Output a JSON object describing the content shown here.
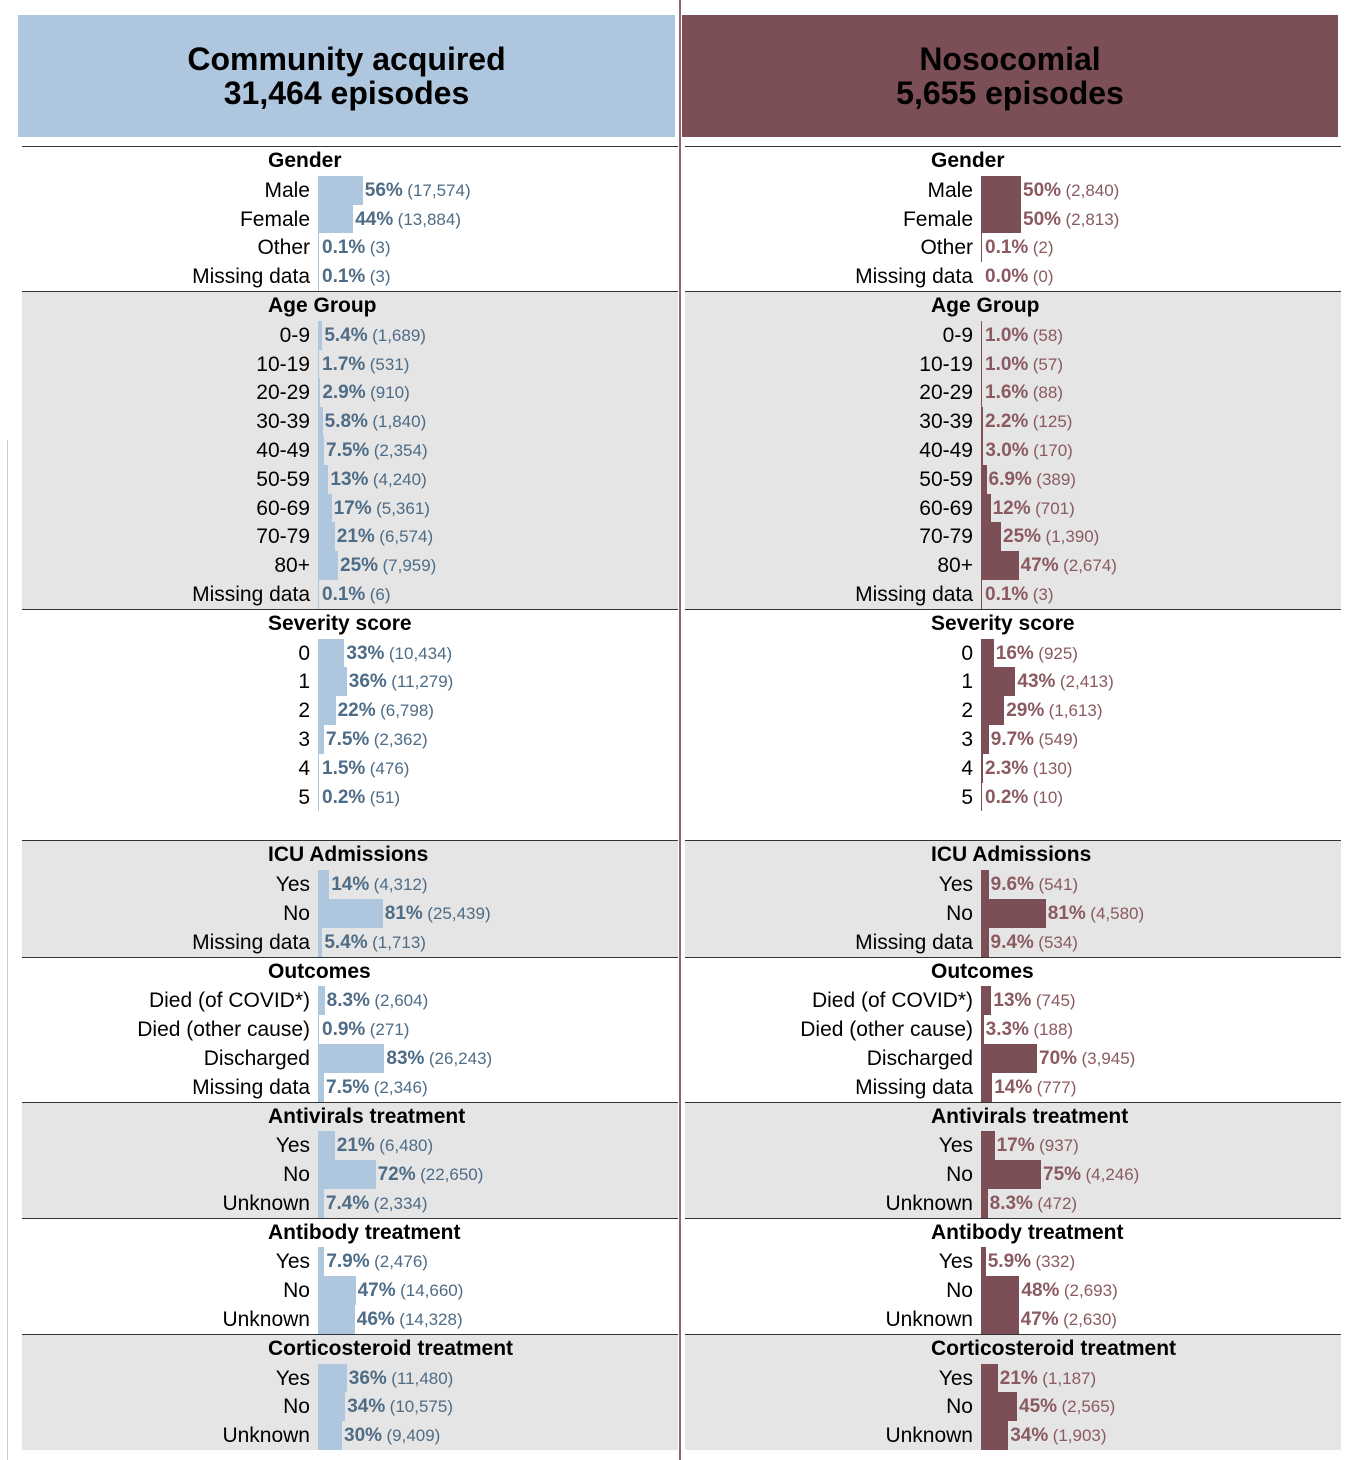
{
  "panels": [
    {
      "color": "#afc6df",
      "header": {
        "title": "Community acquired",
        "subtitle": "31,464 episodes"
      },
      "sections": [
        {
          "title": "Gender",
          "rows": [
            {
              "label": "Male",
              "value": 56,
              "value_label": "56%",
              "count": "(17,574)"
            },
            {
              "label": "Female",
              "value": 44,
              "value_label": "44%",
              "count": "(13,884)"
            },
            {
              "label": "Other",
              "value": 0.1,
              "value_label": "0.1%",
              "count": "(3)"
            },
            {
              "label": "Missing data",
              "value": 0.1,
              "value_label": "0.1%",
              "count": "(3)"
            }
          ]
        },
        {
          "title": "Age Group",
          "rows": [
            {
              "label": "0-9",
              "value": 5.4,
              "value_label": "5.4%",
              "count": "(1,689)"
            },
            {
              "label": "10-19",
              "value": 1.7,
              "value_label": "1.7%",
              "count": "(531)"
            },
            {
              "label": "20-29",
              "value": 2.9,
              "value_label": "2.9%",
              "count": "(910)"
            },
            {
              "label": "30-39",
              "value": 5.8,
              "value_label": "5.8%",
              "count": "(1,840)"
            },
            {
              "label": "40-49",
              "value": 7.5,
              "value_label": "7.5%",
              "count": "(2,354)"
            },
            {
              "label": "50-59",
              "value": 13,
              "value_label": "13%",
              "count": "(4,240)"
            },
            {
              "label": "60-69",
              "value": 17,
              "value_label": "17%",
              "count": "(5,361)"
            },
            {
              "label": "70-79",
              "value": 21,
              "value_label": "21%",
              "count": "(6,574)"
            },
            {
              "label": "80+",
              "value": 25,
              "value_label": "25%",
              "count": "(7,959)"
            },
            {
              "label": "Missing data",
              "value": 0.1,
              "value_label": "0.1%",
              "count": "(6)"
            }
          ]
        },
        {
          "title": "Severity score",
          "rows": [
            {
              "label": "0",
              "value": 33,
              "value_label": "33%",
              "count": "(10,434)"
            },
            {
              "label": "1",
              "value": 36,
              "value_label": "36%",
              "count": "(11,279)"
            },
            {
              "label": "2",
              "value": 22,
              "value_label": "22%",
              "count": "(6,798)"
            },
            {
              "label": "3",
              "value": 7.5,
              "value_label": "7.5%",
              "count": "(2,362)"
            },
            {
              "label": "4",
              "value": 1.5,
              "value_label": "1.5%",
              "count": "(476)"
            },
            {
              "label": "5",
              "value": 0.2,
              "value_label": "0.2%",
              "count": "(51)"
            }
          ]
        },
        {
          "title": "ICU Admissions",
          "rows": [
            {
              "label": "Yes",
              "value": 14,
              "value_label": "14%",
              "count": "(4,312)"
            },
            {
              "label": "No",
              "value": 81,
              "value_label": "81%",
              "count": "(25,439)"
            },
            {
              "label": "Missing data",
              "value": 5.4,
              "value_label": "5.4%",
              "count": "(1,713)"
            }
          ]
        },
        {
          "title": "Outcomes",
          "rows": [
            {
              "label": "Died (of COVID*)",
              "value": 8.3,
              "value_label": "8.3%",
              "count": "(2,604)"
            },
            {
              "label": "Died (other cause)",
              "value": 0.9,
              "value_label": "0.9%",
              "count": "(271)"
            },
            {
              "label": "Discharged",
              "value": 83,
              "value_label": "83%",
              "count": "(26,243)"
            },
            {
              "label": "Missing data",
              "value": 7.5,
              "value_label": "7.5%",
              "count": "(2,346)"
            }
          ]
        },
        {
          "title": "Antivirals treatment",
          "rows": [
            {
              "label": "Yes",
              "value": 21,
              "value_label": "21%",
              "count": "(6,480)"
            },
            {
              "label": "No",
              "value": 72,
              "value_label": "72%",
              "count": "(22,650)"
            },
            {
              "label": "Unknown",
              "value": 7.4,
              "value_label": "7.4%",
              "count": "(2,334)"
            }
          ]
        },
        {
          "title": "Antibody treatment",
          "rows": [
            {
              "label": "Yes",
              "value": 7.9,
              "value_label": "7.9%",
              "count": "(2,476)"
            },
            {
              "label": "No",
              "value": 47,
              "value_label": "47%",
              "count": "(14,660)"
            },
            {
              "label": "Unknown",
              "value": 46,
              "value_label": "46%",
              "count": "(14,328)"
            }
          ]
        },
        {
          "title": "Corticosteroid treatment",
          "rows": [
            {
              "label": "Yes",
              "value": 36,
              "value_label": "36%",
              "count": "(11,480)"
            },
            {
              "label": "No",
              "value": 34,
              "value_label": "34%",
              "count": "(10,575)"
            },
            {
              "label": "Unknown",
              "value": 30,
              "value_label": "30%",
              "count": "(9,409)"
            }
          ]
        }
      ]
    },
    {
      "color": "#7b4f55",
      "header": {
        "title": "Nosocomial",
        "subtitle": "5,655 episodes"
      },
      "sections": [
        {
          "title": "Gender",
          "rows": [
            {
              "label": "Male",
              "value": 50,
              "value_label": "50%",
              "count": "(2,840)"
            },
            {
              "label": "Female",
              "value": 50,
              "value_label": "50%",
              "count": "(2,813)"
            },
            {
              "label": "Other",
              "value": 0.1,
              "value_label": "0.1%",
              "count": "(2)"
            },
            {
              "label": "Missing data",
              "value": 0,
              "value_label": "0.0%",
              "count": "(0)"
            }
          ]
        },
        {
          "title": "Age Group",
          "rows": [
            {
              "label": "0-9",
              "value": 1,
              "value_label": "1.0%",
              "count": "(58)"
            },
            {
              "label": "10-19",
              "value": 1,
              "value_label": "1.0%",
              "count": "(57)"
            },
            {
              "label": "20-29",
              "value": 1.6,
              "value_label": "1.6%",
              "count": "(88)"
            },
            {
              "label": "30-39",
              "value": 2.2,
              "value_label": "2.2%",
              "count": "(125)"
            },
            {
              "label": "40-49",
              "value": 3,
              "value_label": "3.0%",
              "count": "(170)"
            },
            {
              "label": "50-59",
              "value": 6.9,
              "value_label": "6.9%",
              "count": "(389)"
            },
            {
              "label": "60-69",
              "value": 12,
              "value_label": "12%",
              "count": "(701)"
            },
            {
              "label": "70-79",
              "value": 25,
              "value_label": "25%",
              "count": "(1,390)"
            },
            {
              "label": "80+",
              "value": 47,
              "value_label": "47%",
              "count": "(2,674)"
            },
            {
              "label": "Missing data",
              "value": 0.1,
              "value_label": "0.1%",
              "count": "(3)"
            }
          ]
        },
        {
          "title": "Severity score",
          "rows": [
            {
              "label": "0",
              "value": 16,
              "value_label": "16%",
              "count": "(925)"
            },
            {
              "label": "1",
              "value": 43,
              "value_label": "43%",
              "count": "(2,413)"
            },
            {
              "label": "2",
              "value": 29,
              "value_label": "29%",
              "count": "(1,613)"
            },
            {
              "label": "3",
              "value": 9.7,
              "value_label": "9.7%",
              "count": "(549)"
            },
            {
              "label": "4",
              "value": 2.3,
              "value_label": "2.3%",
              "count": "(130)"
            },
            {
              "label": "5",
              "value": 0.2,
              "value_label": "0.2%",
              "count": "(10)"
            }
          ]
        },
        {
          "title": "ICU Admissions",
          "rows": [
            {
              "label": "Yes",
              "value": 9.6,
              "value_label": "9.6%",
              "count": "(541)"
            },
            {
              "label": "No",
              "value": 81,
              "value_label": "81%",
              "count": "(4,580)"
            },
            {
              "label": "Missing data",
              "value": 9.4,
              "value_label": "9.4%",
              "count": "(534)"
            }
          ]
        },
        {
          "title": "Outcomes",
          "rows": [
            {
              "label": "Died (of COVID*)",
              "value": 13,
              "value_label": "13%",
              "count": "(745)"
            },
            {
              "label": "Died (other cause)",
              "value": 3.3,
              "value_label": "3.3%",
              "count": "(188)"
            },
            {
              "label": "Discharged",
              "value": 70,
              "value_label": "70%",
              "count": "(3,945)"
            },
            {
              "label": "Missing data",
              "value": 14,
              "value_label": "14%",
              "count": "(777)"
            }
          ]
        },
        {
          "title": "Antivirals treatment",
          "rows": [
            {
              "label": "Yes",
              "value": 17,
              "value_label": "17%",
              "count": "(937)"
            },
            {
              "label": "No",
              "value": 75,
              "value_label": "75%",
              "count": "(4,246)"
            },
            {
              "label": "Unknown",
              "value": 8.3,
              "value_label": "8.3%",
              "count": "(472)"
            }
          ]
        },
        {
          "title": "Antibody treatment",
          "rows": [
            {
              "label": "Yes",
              "value": 5.9,
              "value_label": "5.9%",
              "count": "(332)"
            },
            {
              "label": "No",
              "value": 48,
              "value_label": "48%",
              "count": "(2,693)"
            },
            {
              "label": "Unknown",
              "value": 47,
              "value_label": "47%",
              "count": "(2,630)"
            }
          ]
        },
        {
          "title": "Corticosteroid treatment",
          "rows": [
            {
              "label": "Yes",
              "value": 21,
              "value_label": "21%",
              "count": "(1,187)"
            },
            {
              "label": "No",
              "value": 45,
              "value_label": "45%",
              "count": "(2,565)"
            },
            {
              "label": "Unknown",
              "value": 34,
              "value_label": "34%",
              "count": "(1,903)"
            }
          ]
        }
      ]
    }
  ]
}
